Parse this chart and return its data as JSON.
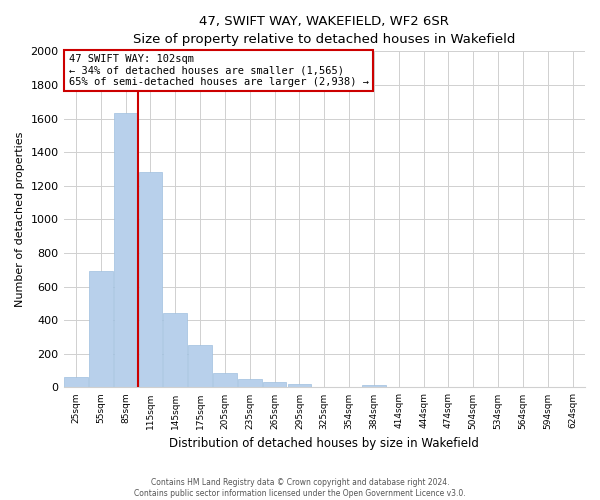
{
  "title": "47, SWIFT WAY, WAKEFIELD, WF2 6SR",
  "subtitle": "Size of property relative to detached houses in Wakefield",
  "xlabel": "Distribution of detached houses by size in Wakefield",
  "ylabel": "Number of detached properties",
  "bar_labels": [
    "25sqm",
    "55sqm",
    "85sqm",
    "115sqm",
    "145sqm",
    "175sqm",
    "205sqm",
    "235sqm",
    "265sqm",
    "295sqm",
    "325sqm",
    "354sqm",
    "384sqm",
    "414sqm",
    "444sqm",
    "474sqm",
    "504sqm",
    "534sqm",
    "564sqm",
    "594sqm",
    "624sqm"
  ],
  "bar_values": [
    65,
    690,
    1635,
    1280,
    440,
    255,
    88,
    52,
    30,
    20,
    0,
    0,
    15,
    0,
    0,
    0,
    0,
    0,
    0,
    0,
    0
  ],
  "bar_color": "#b8d0eb",
  "bar_edge_color": "#9fbfdf",
  "property_label": "47 SWIFT WAY: 102sqm",
  "annotation_line1": "← 34% of detached houses are smaller (1,565)",
  "annotation_line2": "65% of semi-detached houses are larger (2,938) →",
  "annotation_box_color": "#ffffff",
  "annotation_box_edge_color": "#cc0000",
  "property_line_color": "#cc0000",
  "ylim": [
    0,
    2000
  ],
  "yticks": [
    0,
    200,
    400,
    600,
    800,
    1000,
    1200,
    1400,
    1600,
    1800,
    2000
  ],
  "footer_line1": "Contains HM Land Registry data © Crown copyright and database right 2024.",
  "footer_line2": "Contains public sector information licensed under the Open Government Licence v3.0.",
  "background_color": "#ffffff",
  "grid_color": "#d0d0d0"
}
